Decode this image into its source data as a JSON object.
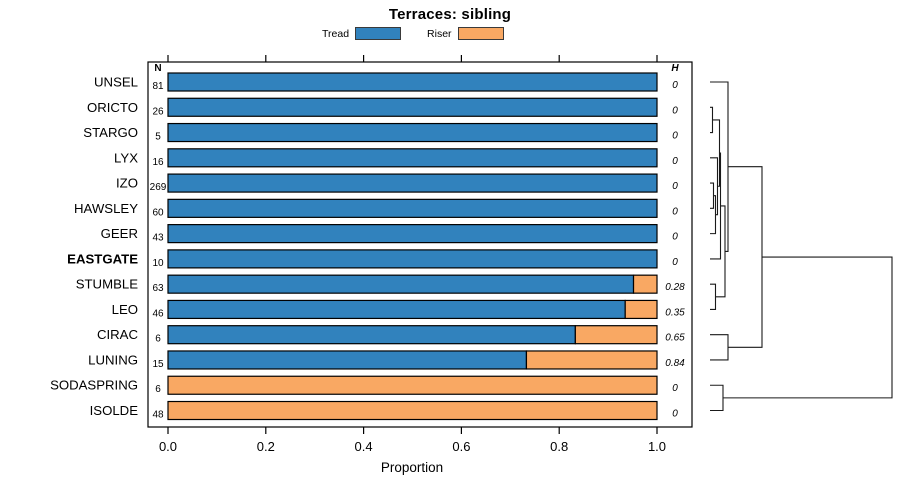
{
  "chart_data": {
    "type": "bar",
    "orientation": "horizontal-stacked",
    "title": "Terraces: sibling",
    "xlabel": "Proportion",
    "xlim": [
      0,
      1
    ],
    "n_header": "N",
    "h_header": "H",
    "series": [
      {
        "name": "Tread",
        "color": "#3182BD"
      },
      {
        "name": "Riser",
        "color": "#F9A863"
      }
    ],
    "x_ticks": [
      {
        "label": "0.0",
        "value": 0.0
      },
      {
        "label": "0.2",
        "value": 0.2
      },
      {
        "label": "0.4",
        "value": 0.4
      },
      {
        "label": "0.6",
        "value": 0.6
      },
      {
        "label": "0.8",
        "value": 0.8
      },
      {
        "label": "1.0",
        "value": 1.0
      }
    ],
    "rows": [
      {
        "label": "UNSEL",
        "n": 81,
        "tread": 1.0,
        "riser": 0.0,
        "h": "0",
        "bold": false
      },
      {
        "label": "ORICTO",
        "n": 26,
        "tread": 1.0,
        "riser": 0.0,
        "h": "0",
        "bold": false
      },
      {
        "label": "STARGO",
        "n": 5,
        "tread": 1.0,
        "riser": 0.0,
        "h": "0",
        "bold": false
      },
      {
        "label": "LYX",
        "n": 16,
        "tread": 1.0,
        "riser": 0.0,
        "h": "0",
        "bold": false
      },
      {
        "label": "IZO",
        "n": 269,
        "tread": 1.0,
        "riser": 0.0,
        "h": "0",
        "bold": false
      },
      {
        "label": "HAWSLEY",
        "n": 60,
        "tread": 1.0,
        "riser": 0.0,
        "h": "0",
        "bold": false
      },
      {
        "label": "GEER",
        "n": 43,
        "tread": 1.0,
        "riser": 0.0,
        "h": "0",
        "bold": false
      },
      {
        "label": "EASTGATE",
        "n": 10,
        "tread": 1.0,
        "riser": 0.0,
        "h": "0",
        "bold": true
      },
      {
        "label": "STUMBLE",
        "n": 63,
        "tread": 0.952,
        "riser": 0.048,
        "h": "0.28",
        "bold": false
      },
      {
        "label": "LEO",
        "n": 46,
        "tread": 0.935,
        "riser": 0.065,
        "h": "0.35",
        "bold": false
      },
      {
        "label": "CIRAC",
        "n": 6,
        "tread": 0.833,
        "riser": 0.167,
        "h": "0.65",
        "bold": false
      },
      {
        "label": "LUNING",
        "n": 15,
        "tread": 0.733,
        "riser": 0.267,
        "h": "0.84",
        "bold": false
      },
      {
        "label": "SODASPRING",
        "n": 6,
        "tread": 0.0,
        "riser": 1.0,
        "h": "0",
        "bold": false
      },
      {
        "label": "ISOLDE",
        "n": 48,
        "tread": 0.0,
        "riser": 1.0,
        "h": "0",
        "bold": false
      }
    ],
    "dendrogram": {
      "merges": [
        {
          "id": "m1",
          "a": "ORICTO",
          "b": "STARGO",
          "h": 0.0137
        },
        {
          "id": "m2",
          "a": "IZO",
          "b": "HAWSLEY",
          "h": 0.0192
        },
        {
          "id": "m3",
          "a": "m2",
          "b": "GEER",
          "h": 0.0302
        },
        {
          "id": "m4",
          "a": "LYX",
          "b": "m3",
          "h": 0.0412
        },
        {
          "id": "m5",
          "a": "m1",
          "b": "m4",
          "h": 0.0522
        },
        {
          "id": "m6",
          "a": "m5",
          "b": "EASTGATE",
          "h": 0.0577
        },
        {
          "id": "m7",
          "a": "STUMBLE",
          "b": "LEO",
          "h": 0.0302
        },
        {
          "id": "m8",
          "a": "m6",
          "b": "m7",
          "h": 0.0824
        },
        {
          "id": "m9",
          "a": "UNSEL",
          "b": "m8",
          "h": 0.0989
        },
        {
          "id": "m10",
          "a": "CIRAC",
          "b": "LUNING",
          "h": 0.0989
        },
        {
          "id": "m11",
          "a": "m9",
          "b": "m10",
          "h": 0.2857
        },
        {
          "id": "m12",
          "a": "SODASPRING",
          "b": "ISOLDE",
          "h": 0.0714
        },
        {
          "id": "m13",
          "a": "m11",
          "b": "m12",
          "h": 1.0
        }
      ]
    }
  }
}
